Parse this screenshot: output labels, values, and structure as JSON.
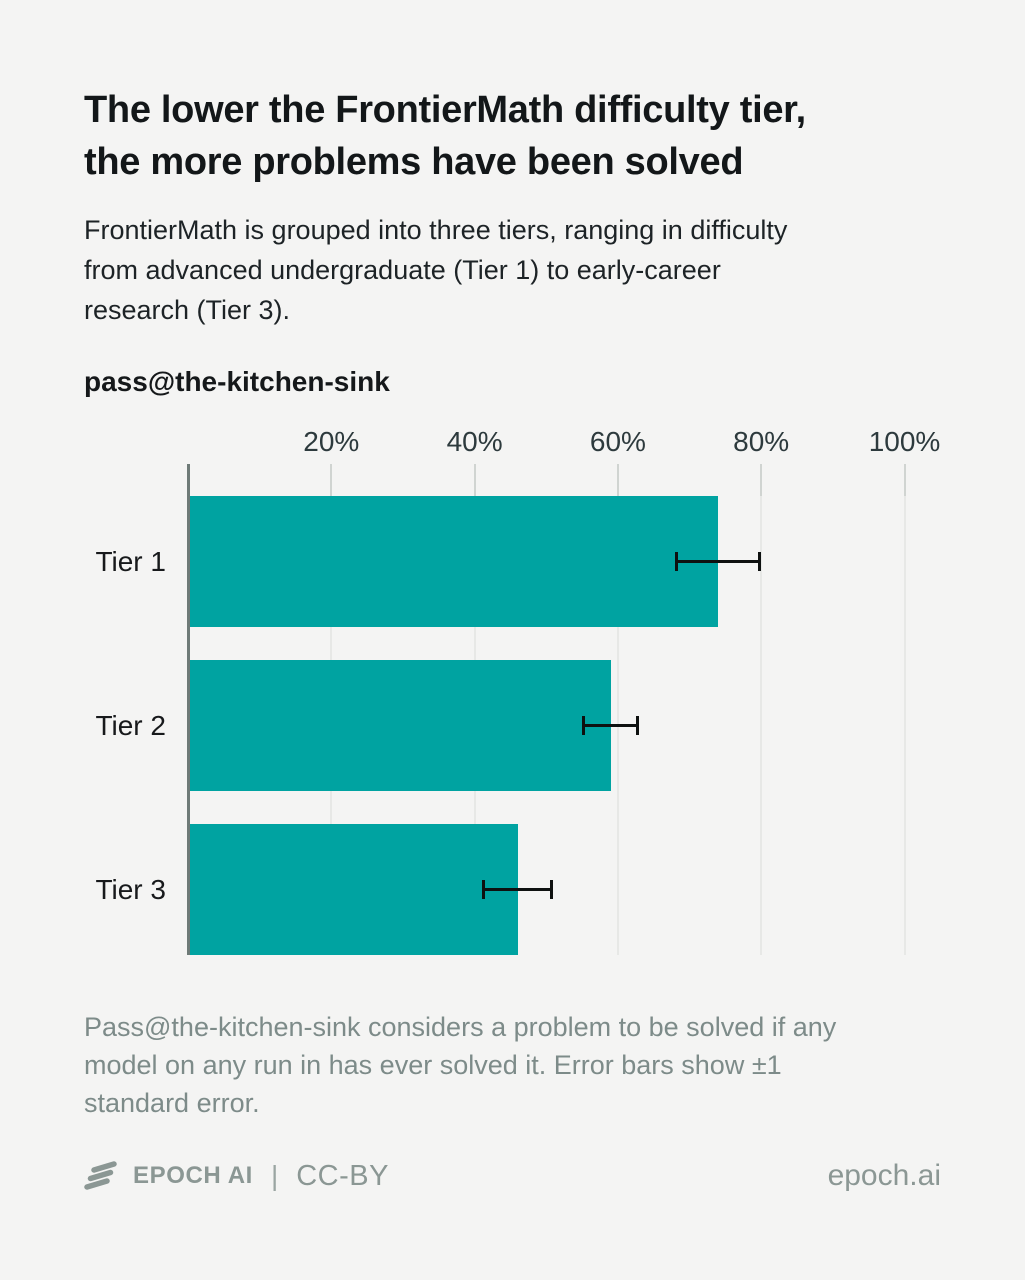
{
  "title": "The lower the FrontierMath difficulty tier,\nthe more problems have been solved",
  "subtitle": "FrontierMath is grouped into three tiers, ranging in difficulty\nfrom advanced undergraduate (Tier 1) to early-career\nresearch (Tier 3).",
  "chart_data": {
    "type": "bar",
    "orientation": "horizontal",
    "title": "pass@the-kitchen-sink",
    "categories": [
      "Tier 1",
      "Tier 2",
      "Tier 3"
    ],
    "values": [
      74,
      59,
      46
    ],
    "error_bars": {
      "label": "±1 standard error",
      "low": [
        68,
        55,
        41
      ],
      "high": [
        80,
        63,
        51
      ]
    },
    "x_ticks": [
      "20%",
      "40%",
      "60%",
      "80%",
      "100%"
    ],
    "x_tick_values": [
      20,
      40,
      60,
      80,
      100
    ],
    "xlim": [
      0,
      100
    ],
    "xlabel": "",
    "ylabel": "",
    "grid": true,
    "legend": "none",
    "bar_color": "#00a3a1"
  },
  "footnote": "Pass@the-kitchen-sink considers a problem to be solved if any\nmodel on any run in has ever solved it. Error bars show ±1\nstandard error.",
  "footer": {
    "brand": "EPOCH AI",
    "divider": "|",
    "license": "CC-BY",
    "site": "epoch.ai"
  },
  "colors": {
    "background": "#f4f4f3",
    "bar": "#00a3a1",
    "axis_line": "#6e7a77",
    "gridline": "#e7e8e6",
    "tick": "#d0d4d1",
    "error_bar": "#0e1110",
    "title_text": "#131719",
    "body_text": "#1d2326",
    "axis_text": "#2d3a3d",
    "muted_text": "#7d8b89",
    "footer_text": "#8b9794"
  }
}
